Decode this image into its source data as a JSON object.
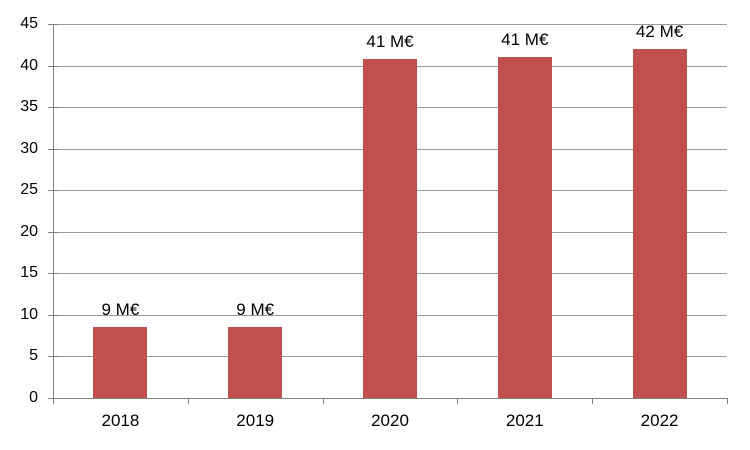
{
  "chart_data": {
    "type": "bar",
    "title": "",
    "xlabel": "",
    "ylabel": "",
    "categories": [
      "2018",
      "2019",
      "2020",
      "2021",
      "2022"
    ],
    "values": [
      8.6,
      8.6,
      40.8,
      41,
      42
    ],
    "data_labels": [
      "9 M€",
      "9 M€",
      "41 M€",
      "41 M€",
      "42 M€"
    ],
    "unit": "M€",
    "ylim": [
      0,
      45
    ],
    "yticks": [
      0,
      5,
      10,
      15,
      20,
      25,
      30,
      35,
      40,
      45
    ],
    "grid": true,
    "legend_position": "none",
    "bar_color": "#C0504D",
    "gridline_color": "#9A9A9A",
    "axis_color": "#808080",
    "text_color": "#000000",
    "background_color": "#FFFFFF"
  }
}
